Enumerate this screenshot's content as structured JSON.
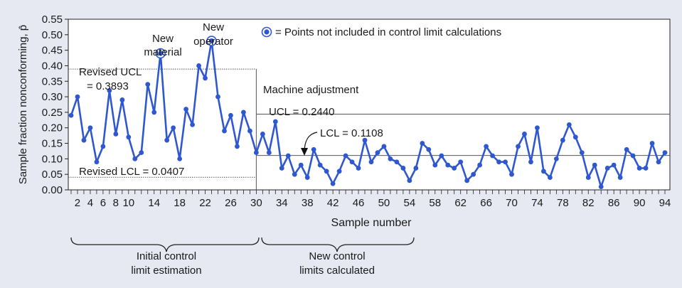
{
  "chart_data": {
    "type": "line",
    "ylabel": "Sample fraction nonconforming, p̂",
    "xlabel": "Sample number",
    "ylim": [
      0,
      0.55
    ],
    "xlim": [
      1,
      94
    ],
    "yticks": [
      0.0,
      0.05,
      0.1,
      0.15,
      0.2,
      0.25,
      0.3,
      0.35,
      0.4,
      0.45,
      0.5,
      0.55
    ],
    "ytick_labels": [
      "0.00",
      "0.05",
      "0.10",
      "0.15",
      "0.20",
      "0.25",
      "0.30",
      "0.35",
      "0.40",
      "0.45",
      "0.50",
      "0.55"
    ],
    "xtick_values": [
      2,
      4,
      6,
      8,
      10,
      14,
      18,
      22,
      26,
      30,
      34,
      38,
      42,
      46,
      50,
      54,
      58,
      62,
      66,
      70,
      74,
      78,
      82,
      86,
      90,
      94
    ],
    "xtick_labels": [
      "2",
      "4",
      "6",
      "8",
      "10",
      "14",
      "18",
      "22",
      "26",
      "30",
      "34",
      "38",
      "42",
      "46",
      "50",
      "54",
      "58",
      "62",
      "66",
      "70",
      "74",
      "78",
      "82",
      "86",
      "90",
      "94"
    ],
    "grid": false,
    "series_color": "#2f58d0",
    "highlight_color": "#2f58d0",
    "line_color": "#555555",
    "x": [
      1,
      2,
      3,
      4,
      5,
      6,
      7,
      8,
      9,
      10,
      11,
      12,
      13,
      14,
      15,
      16,
      17,
      18,
      19,
      20,
      21,
      22,
      23,
      24,
      25,
      26,
      27,
      28,
      29,
      30,
      31,
      32,
      33,
      34,
      35,
      36,
      37,
      38,
      39,
      40,
      41,
      42,
      43,
      44,
      45,
      46,
      47,
      48,
      49,
      50,
      51,
      52,
      53,
      54,
      55,
      56,
      57,
      58,
      59,
      60,
      61,
      62,
      63,
      64,
      65,
      66,
      67,
      68,
      69,
      70,
      71,
      72,
      73,
      74,
      75,
      76,
      77,
      78,
      79,
      80,
      81,
      82,
      83,
      84,
      85,
      86,
      87,
      88,
      89,
      90,
      91,
      92,
      93,
      94
    ],
    "values": [
      0.24,
      0.3,
      0.16,
      0.2,
      0.09,
      0.14,
      0.32,
      0.18,
      0.29,
      0.17,
      0.1,
      0.12,
      0.34,
      0.25,
      0.44,
      0.16,
      0.2,
      0.1,
      0.26,
      0.21,
      0.4,
      0.36,
      0.48,
      0.3,
      0.19,
      0.24,
      0.14,
      0.25,
      0.19,
      0.12,
      0.18,
      0.12,
      0.22,
      0.07,
      0.11,
      0.05,
      0.08,
      0.04,
      0.13,
      0.08,
      0.06,
      0.02,
      0.06,
      0.11,
      0.09,
      0.07,
      0.16,
      0.09,
      0.12,
      0.14,
      0.1,
      0.09,
      0.07,
      0.03,
      0.07,
      0.15,
      0.13,
      0.08,
      0.11,
      0.08,
      0.07,
      0.09,
      0.03,
      0.05,
      0.08,
      0.14,
      0.11,
      0.09,
      0.09,
      0.05,
      0.14,
      0.18,
      0.09,
      0.2,
      0.06,
      0.04,
      0.1,
      0.16,
      0.21,
      0.17,
      0.12,
      0.04,
      0.08,
      0.01,
      0.07,
      0.08,
      0.04,
      0.13,
      0.11,
      0.07,
      0.07,
      0.15,
      0.09,
      0.12
    ],
    "highlighted_points": [
      15,
      23
    ],
    "control_limits": {
      "revised_ucl": 0.3893,
      "revised_lcl": 0.0407,
      "ucl": 0.244,
      "lcl": 0.1108,
      "phase_split_x": 30
    },
    "annotations": {
      "legend_text": "= Points not included in control limit calculations",
      "new_material_1": "New",
      "new_material_2": "material",
      "new_operator_1": "New",
      "new_operator_2": "operator",
      "revised_ucl_1": "Revised UCL",
      "revised_ucl_2": "= 0.3893",
      "revised_lcl": "Revised LCL = 0.0407",
      "machine_adjustment": "Machine adjustment",
      "ucl": "UCL = 0.2440",
      "lcl": "LCL = 0.1108",
      "initial_1": "Initial control",
      "initial_2": "limit estimation",
      "new_limits_1": "New control",
      "new_limits_2": "limits calculated"
    }
  }
}
